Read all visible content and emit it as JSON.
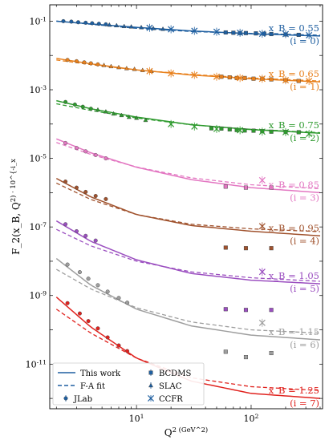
{
  "chart_data": {
    "type": "scatter",
    "xlabel": "Q^2 (GeV^2)",
    "ylabel": "F_2(x_B, Q^2) · 10^{-i_x}",
    "xscale": "log",
    "yscale": "log",
    "xlim": [
      1.75,
      420
    ],
    "ylim": [
      5e-13,
      0.3
    ],
    "x_ticks": [
      {
        "v": 10,
        "label": "10^1"
      },
      {
        "v": 100,
        "label": "10^2"
      }
    ],
    "y_ticks": [
      {
        "v": 0.1,
        "label": "10^-1"
      },
      {
        "v": 0.001,
        "label": "10^-3"
      },
      {
        "v": 1e-05,
        "label": "10^-5"
      },
      {
        "v": 1e-07,
        "label": "10^-7"
      },
      {
        "v": 1e-09,
        "label": "10^-9"
      },
      {
        "v": 1e-11,
        "label": "10^-11"
      }
    ],
    "grid": false,
    "legend_position": "bottom-left",
    "legend": {
      "lines": [
        {
          "label": "This work",
          "style": "solid"
        },
        {
          "label": "F-A fit",
          "style": "dashed"
        }
      ],
      "markers": [
        {
          "label": "JLab",
          "marker": "circle"
        },
        {
          "label": "BCDMS",
          "marker": "square"
        },
        {
          "label": "SLAC",
          "marker": "triangle"
        },
        {
          "label": "CCFR",
          "marker": "x"
        }
      ]
    },
    "series": [
      {
        "xb": "0.55",
        "i": "0",
        "color": "#1f5fa0",
        "this_work": [
          [
            2,
            0.1
          ],
          [
            4,
            0.083
          ],
          [
            10,
            0.066
          ],
          [
            30,
            0.052
          ],
          [
            100,
            0.043
          ],
          [
            400,
            0.037
          ]
        ],
        "fa_fit": [
          [
            2,
            0.1
          ],
          [
            4,
            0.081
          ],
          [
            10,
            0.062
          ],
          [
            30,
            0.05
          ],
          [
            100,
            0.044
          ],
          [
            400,
            0.039
          ]
        ],
        "jlab": [
          [
            2.3,
            0.1
          ],
          [
            2.7,
            0.097
          ],
          [
            3.1,
            0.093
          ],
          [
            3.6,
            0.09
          ],
          [
            4.1,
            0.087
          ],
          [
            4.7,
            0.084
          ],
          [
            5.4,
            0.081
          ]
        ],
        "slac": [
          [
            5.8,
            0.078
          ],
          [
            6.7,
            0.075
          ],
          [
            7.8,
            0.071
          ],
          [
            9,
            0.069
          ],
          [
            11,
            0.066
          ],
          [
            14,
            0.062
          ],
          [
            17,
            0.059
          ]
        ],
        "bcdms": [
          [
            60,
            0.047
          ],
          [
            70,
            0.046
          ],
          [
            80,
            0.045
          ],
          [
            90,
            0.045
          ],
          [
            110,
            0.044
          ],
          [
            130,
            0.043
          ],
          [
            150,
            0.042
          ],
          [
            200,
            0.041
          ],
          [
            260,
            0.04
          ]
        ],
        "ccfr": [
          [
            13,
            0.064
          ],
          [
            20,
            0.058
          ],
          [
            32,
            0.052
          ],
          [
            50,
            0.049
          ],
          [
            80,
            0.046
          ],
          [
            125,
            0.043
          ],
          [
            200,
            0.042
          ],
          [
            320,
            0.039
          ]
        ]
      },
      {
        "xb": "0.65",
        "i": "1",
        "color": "#e8801c",
        "this_work": [
          [
            2,
            0.0082
          ],
          [
            4,
            0.0057
          ],
          [
            10,
            0.0038
          ],
          [
            30,
            0.0027
          ],
          [
            100,
            0.0021
          ],
          [
            400,
            0.0017
          ]
        ],
        "fa_fit": [
          [
            2,
            0.0074
          ],
          [
            4,
            0.0054
          ],
          [
            10,
            0.0038
          ],
          [
            30,
            0.0028
          ],
          [
            100,
            0.0022
          ],
          [
            400,
            0.0018
          ]
        ],
        "jlab": [
          [
            2.5,
            0.0074
          ],
          [
            3,
            0.0068
          ],
          [
            3.5,
            0.0063
          ],
          [
            4,
            0.0059
          ],
          [
            4.6,
            0.0055
          ]
        ],
        "slac": [
          [
            5.2,
            0.0052
          ],
          [
            6,
            0.0048
          ],
          [
            7,
            0.0045
          ],
          [
            8.2,
            0.0042
          ],
          [
            9.6,
            0.004
          ],
          [
            11.3,
            0.0037
          ],
          [
            13.5,
            0.0035
          ]
        ],
        "bcdms": [
          [
            55,
            0.0024
          ],
          [
            65,
            0.0023
          ],
          [
            75,
            0.0022
          ],
          [
            88,
            0.0022
          ],
          [
            105,
            0.0021
          ],
          [
            125,
            0.0021
          ],
          [
            150,
            0.002
          ],
          [
            200,
            0.0019
          ],
          [
            260,
            0.0018
          ]
        ],
        "ccfr": [
          [
            13,
            0.0035
          ],
          [
            20,
            0.003
          ],
          [
            32,
            0.0027
          ],
          [
            50,
            0.0024
          ],
          [
            80,
            0.0022
          ],
          [
            125,
            0.0021
          ],
          [
            200,
            0.0019
          ],
          [
            320,
            0.0018
          ]
        ]
      },
      {
        "xb": "0.75",
        "i": "2",
        "color": "#2e9a2e",
        "this_work": [
          [
            2,
            0.00048
          ],
          [
            4,
            0.00028
          ],
          [
            10,
            0.00016
          ],
          [
            30,
            9.6e-05
          ],
          [
            100,
            6.9e-05
          ],
          [
            400,
            5.4e-05
          ]
        ],
        "fa_fit": [
          [
            2,
            0.00039
          ],
          [
            4,
            0.00025
          ],
          [
            10,
            0.00015
          ],
          [
            30,
            9.5e-05
          ],
          [
            100,
            7e-05
          ],
          [
            400,
            5.6e-05
          ]
        ],
        "jlab": [
          [
            2.4,
            0.00044
          ],
          [
            2.9,
            0.00037
          ],
          [
            3.4,
            0.00032
          ],
          [
            4,
            0.00028
          ]
        ],
        "slac": [
          [
            4.6,
            0.00026
          ],
          [
            5.4,
            0.00023
          ],
          [
            6.3,
            0.0002
          ],
          [
            7.4,
            0.00018
          ],
          [
            8.6,
            0.00016
          ],
          [
            10,
            0.00015
          ],
          [
            12,
            0.00013
          ]
        ],
        "bcdms": [
          [
            45,
            7.5e-05
          ],
          [
            55,
            7.4e-05
          ],
          [
            65,
            7e-05
          ],
          [
            75,
            6.7e-05
          ],
          [
            88,
            6.5e-05
          ],
          [
            105,
            6.4e-05
          ],
          [
            125,
            6.2e-05
          ],
          [
            150,
            6e-05
          ],
          [
            200,
            5.9e-05
          ],
          [
            260,
            5.8e-05
          ]
        ],
        "ccfr": [
          [
            20,
            0.0001
          ],
          [
            32,
            8.5e-05
          ],
          [
            50,
            7.2e-05
          ],
          [
            80,
            6.6e-05
          ],
          [
            125,
            6e-05
          ],
          [
            200,
            5.8e-05
          ],
          [
            320,
            5.2e-05
          ]
        ]
      },
      {
        "xb": "0.85",
        "i": "3",
        "color": "#e377c2",
        "this_work": [
          [
            2,
            3.7e-05
          ],
          [
            4,
            1.45e-05
          ],
          [
            10,
            5.5e-06
          ],
          [
            30,
            2.4e-06
          ],
          [
            100,
            1.4e-06
          ],
          [
            400,
            1e-06
          ]
        ],
        "fa_fit": [
          [
            2,
            2.9e-05
          ],
          [
            4,
            1.3e-05
          ],
          [
            10,
            5.6e-06
          ],
          [
            30,
            2.7e-06
          ],
          [
            100,
            1.7e-06
          ],
          [
            400,
            1.3e-06
          ]
        ],
        "jlab": [
          [
            2.4,
            2.8e-05
          ],
          [
            3,
            2e-05
          ],
          [
            3.6,
            1.6e-05
          ],
          [
            4.4,
            1.25e-05
          ],
          [
            5.4,
            1e-05
          ]
        ],
        "slac": [],
        "bcdms": [
          [
            60,
            1.5e-06
          ],
          [
            90,
            1.4e-06
          ],
          [
            150,
            1.4e-06
          ]
        ],
        "ccfr": [
          [
            125,
            2.3e-06
          ]
        ]
      },
      {
        "xb": "0.95",
        "i": "4",
        "color": "#a0522d",
        "this_work": [
          [
            2,
            2.6e-06
          ],
          [
            4,
            7.5e-07
          ],
          [
            10,
            2.3e-07
          ],
          [
            30,
            1.1e-07
          ],
          [
            100,
            7.5e-08
          ],
          [
            400,
            5.5e-08
          ]
        ],
        "fa_fit": [
          [
            2,
            1.9e-06
          ],
          [
            4,
            6.3e-07
          ],
          [
            10,
            2.3e-07
          ],
          [
            30,
            1.2e-07
          ],
          [
            100,
            8.8e-08
          ],
          [
            400,
            7.3e-08
          ]
        ],
        "jlab": [
          [
            2.4,
            2.1e-06
          ],
          [
            3,
            1.4e-06
          ],
          [
            3.6,
            1.05e-06
          ],
          [
            4.4,
            8e-07
          ],
          [
            5.4,
            6.5e-07
          ]
        ],
        "slac": [],
        "bcdms": [
          [
            60,
            2.5e-08
          ],
          [
            90,
            2.4e-08
          ],
          [
            150,
            2.4e-08
          ]
        ],
        "ccfr": [
          [
            125,
            1.05e-07
          ]
        ]
      },
      {
        "xb": "1.05",
        "i": "5",
        "color": "#9b4fc0",
        "this_work": [
          [
            2,
            1.5e-07
          ],
          [
            4,
            3.8e-08
          ],
          [
            10,
            1.1e-08
          ],
          [
            30,
            4.4e-09
          ],
          [
            100,
            2.8e-09
          ],
          [
            400,
            2.2e-09
          ]
        ],
        "fa_fit": [
          [
            2,
            8.5e-08
          ],
          [
            4,
            2.8e-08
          ],
          [
            10,
            1e-08
          ],
          [
            30,
            4.9e-09
          ],
          [
            100,
            3.3e-09
          ],
          [
            400,
            2.6e-09
          ]
        ],
        "jlab": [
          [
            2.4,
            1.2e-07
          ],
          [
            3,
            7.5e-08
          ],
          [
            3.6,
            5.5e-08
          ],
          [
            4.4,
            4e-08
          ]
        ],
        "slac": [],
        "bcdms": [
          [
            60,
            4e-10
          ],
          [
            90,
            3.8e-10
          ],
          [
            150,
            3.8e-10
          ]
        ],
        "ccfr": [
          [
            125,
            4.9e-09
          ]
        ]
      },
      {
        "xb": "1.15",
        "i": "6",
        "color": "#9e9e9e",
        "this_work": [
          [
            2,
            1.2e-08
          ],
          [
            4,
            2e-09
          ],
          [
            10,
            4e-10
          ],
          [
            30,
            1.3e-10
          ],
          [
            100,
            7e-11
          ],
          [
            400,
            5.1e-11
          ]
        ],
        "fa_fit": [
          [
            2,
            5.8e-09
          ],
          [
            4,
            1.55e-09
          ],
          [
            10,
            4.4e-10
          ],
          [
            30,
            1.7e-10
          ],
          [
            100,
            1e-10
          ],
          [
            400,
            8e-11
          ]
        ],
        "jlab": [
          [
            2.5,
            8e-09
          ],
          [
            3.2,
            4.8e-09
          ],
          [
            3.8,
            3.1e-09
          ],
          [
            4.6,
            2e-09
          ],
          [
            5.6,
            1.3e-09
          ],
          [
            7,
            8.5e-10
          ],
          [
            8.3,
            6.2e-10
          ]
        ],
        "slac": [],
        "bcdms": [
          [
            60,
            2.3e-11
          ],
          [
            90,
            1.6e-11
          ],
          [
            150,
            2.1e-11
          ]
        ],
        "ccfr": [
          [
            125,
            1.6e-10
          ]
        ]
      },
      {
        "xb": "1.25",
        "i": "7",
        "color": "#e0221e",
        "this_work": [
          [
            2,
            9e-10
          ],
          [
            4,
            1.2e-10
          ],
          [
            10,
            1.5e-11
          ],
          [
            30,
            3.2e-12
          ],
          [
            100,
            1.4e-12
          ],
          [
            400,
            1e-12
          ]
        ],
        "fa_fit": [
          [
            2,
            4e-10
          ],
          [
            4,
            8e-11
          ],
          [
            10,
            1.5e-11
          ],
          [
            30,
            4e-12
          ],
          [
            100,
            2.2e-12
          ],
          [
            400,
            1.7e-12
          ]
        ],
        "jlab": [
          [
            2.5,
            6e-10
          ],
          [
            3.2,
            3e-10
          ],
          [
            3.8,
            1.8e-10
          ],
          [
            4.6,
            1.1e-10
          ],
          [
            5.6,
            6e-11
          ],
          [
            7,
            3.5e-11
          ],
          [
            8.3,
            2.4e-11
          ]
        ],
        "slac": [],
        "bcdms": [],
        "ccfr": []
      }
    ]
  }
}
